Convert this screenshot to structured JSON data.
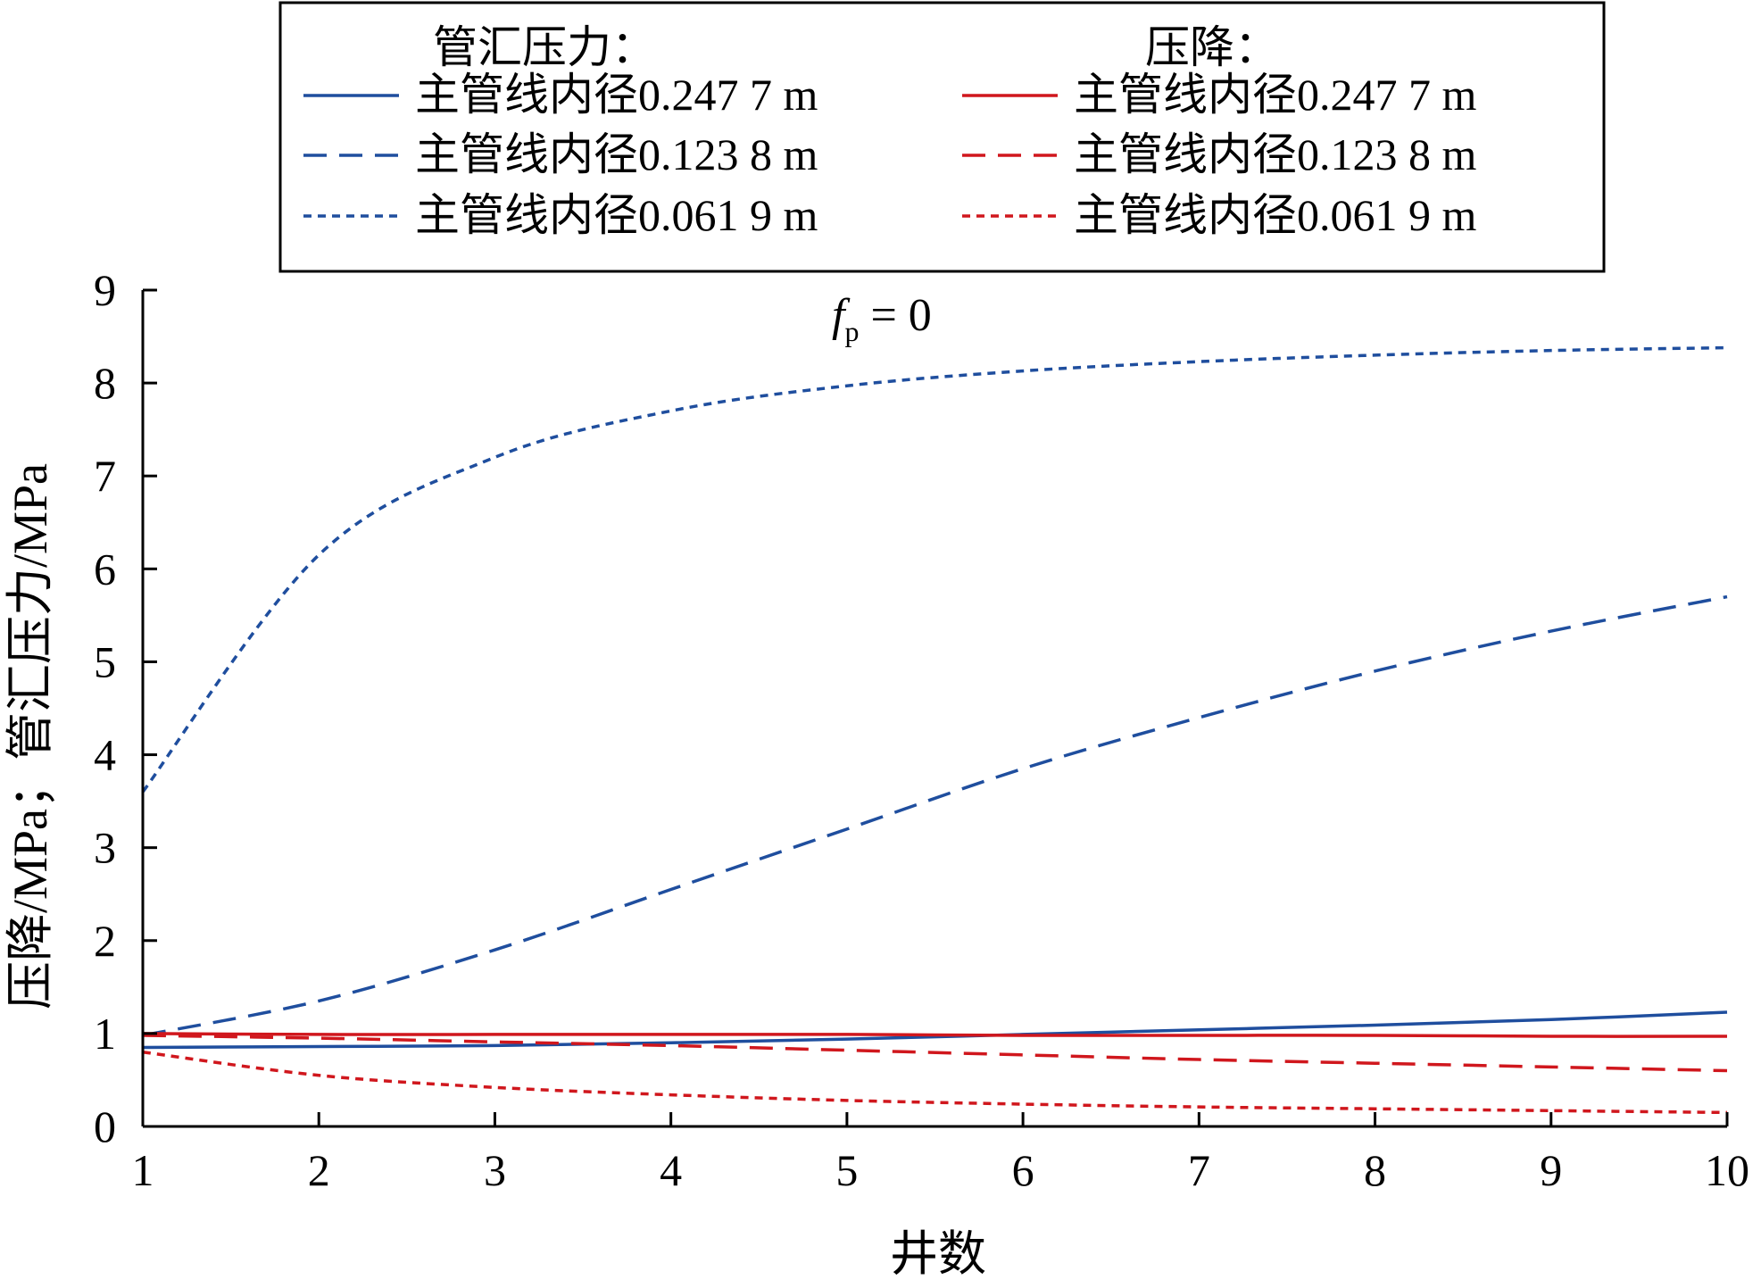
{
  "chart_data": {
    "type": "line",
    "xlabel": "井数",
    "ylabel": "压降/MPa；管汇压力/MPa",
    "annotation": {
      "var": "f",
      "sub": "p",
      "rest": " = 0"
    },
    "xlim": [
      1,
      10
    ],
    "ylim": [
      0,
      9
    ],
    "x_ticks": [
      "1",
      "2",
      "3",
      "4",
      "5",
      "6",
      "7",
      "8",
      "9",
      "10"
    ],
    "y_ticks": [
      "0",
      "1",
      "2",
      "3",
      "4",
      "5",
      "6",
      "7",
      "8",
      "9"
    ],
    "grid": false,
    "legend_placement": "top",
    "legend_group_titles": [
      "管汇压力：",
      "压降："
    ],
    "x": [
      1,
      2,
      3,
      4,
      5,
      6,
      7,
      8,
      9,
      10
    ],
    "series": [
      {
        "name": "主管线内径0.247 7 m",
        "group": "管汇压力",
        "color": "#1f4e9e",
        "dash": "solid",
        "values": [
          0.85,
          0.86,
          0.87,
          0.9,
          0.94,
          0.99,
          1.04,
          1.09,
          1.15,
          1.23
        ]
      },
      {
        "name": "主管线内径0.123 8 m",
        "group": "管汇压力",
        "color": "#1f4e9e",
        "dash": "dashed",
        "values": [
          0.98,
          1.35,
          1.9,
          2.55,
          3.2,
          3.85,
          4.4,
          4.9,
          5.33,
          5.7
        ]
      },
      {
        "name": "主管线内径0.061 9 m",
        "group": "管汇压力",
        "color": "#1f4e9e",
        "dash": "dotted",
        "values": [
          3.6,
          6.15,
          7.2,
          7.7,
          7.97,
          8.13,
          8.23,
          8.3,
          8.35,
          8.38
        ]
      },
      {
        "name": "主管线内径0.247 7 m",
        "group": "压降",
        "color": "#d0171d",
        "dash": "solid",
        "values": [
          1.0,
          0.99,
          0.99,
          0.99,
          0.99,
          0.98,
          0.98,
          0.98,
          0.97,
          0.97
        ]
      },
      {
        "name": "主管线内径0.123 8 m",
        "group": "压降",
        "color": "#d0171d",
        "dash": "dashed",
        "values": [
          0.98,
          0.95,
          0.91,
          0.87,
          0.82,
          0.77,
          0.72,
          0.68,
          0.64,
          0.6
        ]
      },
      {
        "name": "主管线内径0.061 9 m",
        "group": "压降",
        "color": "#d0171d",
        "dash": "dotted",
        "values": [
          0.8,
          0.55,
          0.42,
          0.34,
          0.28,
          0.24,
          0.21,
          0.19,
          0.17,
          0.15
        ]
      }
    ]
  }
}
